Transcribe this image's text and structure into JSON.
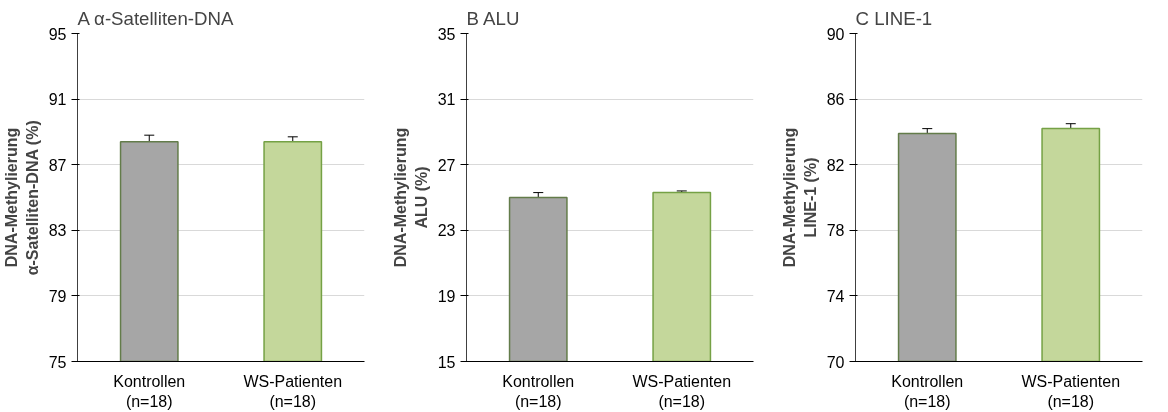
{
  "chart_data": [
    {
      "type": "bar",
      "title": "A α-Satelliten-DNA",
      "ylabel": "DNA-Methylierung\nα-Satelliten-DNA (%)",
      "categories": [
        "Kontrollen\n(n=18)",
        "WS-Patienten\n(n=18)"
      ],
      "values": [
        88.4,
        88.4
      ],
      "errors": [
        0.4,
        0.3
      ],
      "colors": [
        "#a6a6a6",
        "#c4d79b"
      ],
      "ylim": [
        75,
        95
      ],
      "yticks": [
        75,
        79,
        83,
        87,
        91,
        95
      ],
      "grid": "y"
    },
    {
      "type": "bar",
      "title": "B ALU",
      "ylabel": "DNA-Methylierung\nALU (%)",
      "categories": [
        "Kontrollen\n(n=18)",
        "WS-Patienten\n(n=18)"
      ],
      "values": [
        25.0,
        25.3
      ],
      "errors": [
        0.3,
        0.1
      ],
      "colors": [
        "#a6a6a6",
        "#c4d79b"
      ],
      "ylim": [
        15,
        35
      ],
      "yticks": [
        15,
        19,
        23,
        27,
        31,
        35
      ],
      "grid": "y"
    },
    {
      "type": "bar",
      "title": "C LINE-1",
      "ylabel": "DNA-Methylierung\nLINE-1 (%)",
      "categories": [
        "Kontrollen\n(n=18)",
        "WS-Patienten\n(n=18)"
      ],
      "values": [
        83.9,
        84.2
      ],
      "errors": [
        0.3,
        0.3
      ],
      "colors": [
        "#a6a6a6",
        "#c4d79b"
      ],
      "ylim": [
        70,
        90
      ],
      "yticks": [
        70,
        74,
        78,
        82,
        86,
        90
      ],
      "grid": "y"
    }
  ]
}
